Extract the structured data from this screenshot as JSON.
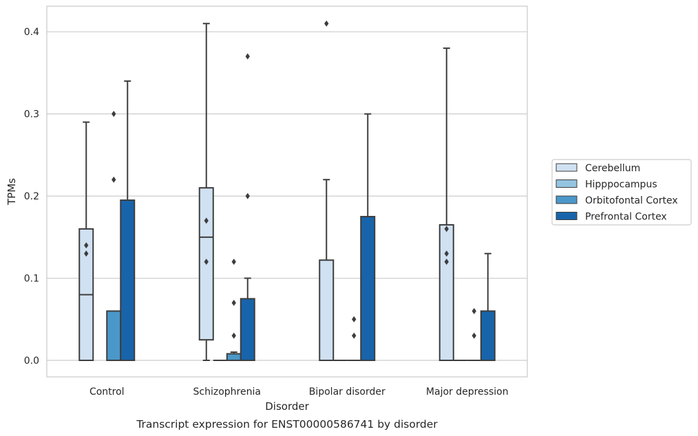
{
  "chart_data": {
    "type": "box",
    "title": "",
    "caption": "Transcript expression for ENST00000586741 by disorder",
    "xlabel": "Disorder",
    "ylabel": "TPMs",
    "ylim": [
      -0.02,
      0.43
    ],
    "yticks": [
      "0.0",
      "0.1",
      "0.2",
      "0.3",
      "0.4"
    ],
    "ytick_values": [
      0.0,
      0.1,
      0.2,
      0.3,
      0.4
    ],
    "grid": "horizontal",
    "legend_position": "right",
    "categories": [
      "Control",
      "Schizophrenia",
      "Bipolar disorder",
      "Major depression"
    ],
    "series": [
      {
        "name": "Cerebellum",
        "color": "#d0e1f2",
        "boxes": [
          {
            "min": 0.0,
            "q1": 0.0,
            "median": 0.08,
            "q3": 0.16,
            "max": 0.29,
            "outliers": [
              0.13,
              0.14
            ]
          },
          {
            "min": 0.0,
            "q1": 0.025,
            "median": 0.15,
            "q3": 0.21,
            "max": 0.41,
            "outliers": [
              0.12,
              0.17
            ]
          },
          {
            "min": 0.0,
            "q1": 0.0,
            "median": 0.0,
            "q3": 0.122,
            "max": 0.22,
            "outliers": [
              0.41
            ]
          },
          {
            "min": 0.0,
            "q1": 0.0,
            "median": 0.0,
            "q3": 0.165,
            "max": 0.38,
            "outliers": [
              0.12,
              0.13,
              0.16
            ]
          }
        ]
      },
      {
        "name": "Hipppocampus",
        "color": "#94c4df",
        "boxes": [
          null,
          {
            "min": 0.0,
            "q1": 0.0,
            "median": 0.0,
            "q3": 0.0,
            "max": 0.0,
            "outliers": []
          },
          {
            "min": 0.0,
            "q1": 0.0,
            "median": 0.0,
            "q3": 0.0,
            "max": 0.0,
            "outliers": []
          },
          {
            "min": 0.0,
            "q1": 0.0,
            "median": 0.0,
            "q3": 0.0,
            "max": 0.0,
            "outliers": []
          }
        ]
      },
      {
        "name": "Orbitofontal Cortex",
        "color": "#4a98c9",
        "boxes": [
          {
            "min": 0.0,
            "q1": 0.0,
            "median": 0.0,
            "q3": 0.06,
            "max": 0.06,
            "outliers": [
              0.22,
              0.3
            ]
          },
          {
            "min": 0.0,
            "q1": 0.0,
            "median": 0.0,
            "q3": 0.008,
            "max": 0.01,
            "outliers": [
              0.03,
              0.07,
              0.12
            ]
          },
          {
            "min": 0.0,
            "q1": 0.0,
            "median": 0.0,
            "q3": 0.0,
            "max": 0.0,
            "outliers": [
              0.03,
              0.05
            ]
          },
          {
            "min": 0.0,
            "q1": 0.0,
            "median": 0.0,
            "q3": 0.0,
            "max": 0.0,
            "outliers": [
              0.03,
              0.06
            ]
          }
        ]
      },
      {
        "name": "Prefrontal Cortex",
        "color": "#1764ab",
        "boxes": [
          {
            "min": 0.0,
            "q1": 0.0,
            "median": 0.0,
            "q3": 0.195,
            "max": 0.34,
            "outliers": []
          },
          {
            "min": 0.0,
            "q1": 0.0,
            "median": 0.0,
            "q3": 0.075,
            "max": 0.1,
            "outliers": [
              0.2,
              0.37
            ]
          },
          {
            "min": 0.0,
            "q1": 0.0,
            "median": 0.0,
            "q3": 0.175,
            "max": 0.3,
            "outliers": []
          },
          {
            "min": 0.0,
            "q1": 0.0,
            "median": 0.0,
            "q3": 0.06,
            "max": 0.13,
            "outliers": []
          }
        ]
      }
    ]
  }
}
